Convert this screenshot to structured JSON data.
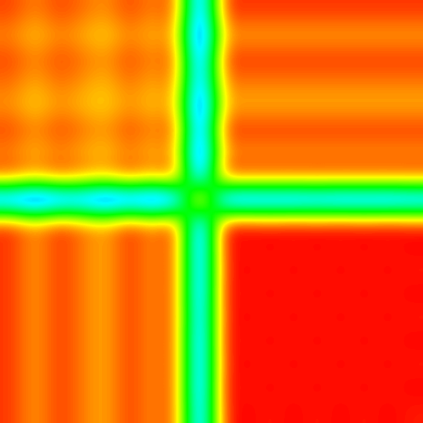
{
  "chart_data": {
    "type": "heatmap",
    "tick_labels": false,
    "grid": false,
    "color_range": [
      0,
      1
    ],
    "cells": [
      [
        0.08,
        0.13,
        0.08,
        0.11,
        0.14,
        0.08,
        0.13,
        0.08,
        0.8,
        0.07,
        0.07,
        0.07,
        0.07,
        0.07,
        0.07,
        0.07,
        0.07,
        0.07
      ],
      [
        0.13,
        0.18,
        0.13,
        0.16,
        0.19,
        0.13,
        0.17,
        0.13,
        0.86,
        0.15,
        0.15,
        0.15,
        0.15,
        0.15,
        0.15,
        0.15,
        0.15,
        0.15
      ],
      [
        0.08,
        0.13,
        0.08,
        0.11,
        0.14,
        0.08,
        0.13,
        0.08,
        0.8,
        0.07,
        0.07,
        0.07,
        0.07,
        0.07,
        0.07,
        0.07,
        0.07,
        0.07
      ],
      [
        0.11,
        0.16,
        0.11,
        0.14,
        0.17,
        0.11,
        0.16,
        0.11,
        0.78,
        0.12,
        0.12,
        0.12,
        0.12,
        0.12,
        0.12,
        0.12,
        0.12,
        0.12
      ],
      [
        0.14,
        0.19,
        0.14,
        0.17,
        0.19,
        0.14,
        0.18,
        0.14,
        0.85,
        0.16,
        0.16,
        0.16,
        0.16,
        0.16,
        0.16,
        0.16,
        0.16,
        0.16
      ],
      [
        0.08,
        0.13,
        0.08,
        0.11,
        0.14,
        0.08,
        0.13,
        0.08,
        0.8,
        0.07,
        0.07,
        0.07,
        0.07,
        0.07,
        0.07,
        0.07,
        0.07,
        0.07
      ],
      [
        0.13,
        0.17,
        0.13,
        0.16,
        0.18,
        0.13,
        0.17,
        0.13,
        0.84,
        0.14,
        0.14,
        0.14,
        0.14,
        0.14,
        0.14,
        0.14,
        0.14,
        0.14
      ],
      [
        0.08,
        0.13,
        0.08,
        0.11,
        0.14,
        0.08,
        0.13,
        0.08,
        0.78,
        0.07,
        0.07,
        0.07,
        0.07,
        0.07,
        0.07,
        0.07,
        0.07,
        0.07
      ],
      [
        0.8,
        0.86,
        0.8,
        0.78,
        0.85,
        0.8,
        0.84,
        0.78,
        0.0,
        0.78,
        0.8,
        0.79,
        0.8,
        0.78,
        0.8,
        0.79,
        0.8,
        0.78
      ],
      [
        0.07,
        0.15,
        0.07,
        0.12,
        0.16,
        0.07,
        0.14,
        0.07,
        0.78,
        0.05,
        0.03,
        0.05,
        0.03,
        0.05,
        0.03,
        0.05,
        0.03,
        0.05
      ],
      [
        0.07,
        0.15,
        0.07,
        0.12,
        0.16,
        0.07,
        0.14,
        0.07,
        0.8,
        0.03,
        0.05,
        0.03,
        0.05,
        0.03,
        0.05,
        0.03,
        0.05,
        0.03
      ],
      [
        0.07,
        0.15,
        0.07,
        0.12,
        0.16,
        0.07,
        0.14,
        0.07,
        0.79,
        0.05,
        0.03,
        0.05,
        0.03,
        0.05,
        0.03,
        0.05,
        0.03,
        0.05
      ],
      [
        0.07,
        0.15,
        0.07,
        0.12,
        0.16,
        0.07,
        0.14,
        0.07,
        0.8,
        0.03,
        0.05,
        0.03,
        0.05,
        0.03,
        0.05,
        0.03,
        0.05,
        0.03
      ],
      [
        0.07,
        0.15,
        0.07,
        0.12,
        0.16,
        0.07,
        0.14,
        0.07,
        0.78,
        0.05,
        0.03,
        0.05,
        0.03,
        0.05,
        0.03,
        0.05,
        0.03,
        0.05
      ],
      [
        0.07,
        0.15,
        0.07,
        0.12,
        0.16,
        0.07,
        0.14,
        0.07,
        0.8,
        0.03,
        0.05,
        0.03,
        0.05,
        0.03,
        0.05,
        0.03,
        0.05,
        0.03
      ],
      [
        0.07,
        0.15,
        0.07,
        0.12,
        0.16,
        0.07,
        0.14,
        0.07,
        0.79,
        0.05,
        0.03,
        0.05,
        0.03,
        0.05,
        0.03,
        0.05,
        0.03,
        0.05
      ],
      [
        0.07,
        0.15,
        0.07,
        0.12,
        0.16,
        0.07,
        0.14,
        0.07,
        0.8,
        0.03,
        0.05,
        0.03,
        0.05,
        0.03,
        0.05,
        0.03,
        0.05,
        0.03
      ],
      [
        0.07,
        0.15,
        0.07,
        0.12,
        0.16,
        0.07,
        0.14,
        0.07,
        0.78,
        0.05,
        0.03,
        0.05,
        0.03,
        0.05,
        0.03,
        0.05,
        0.03,
        0.05
      ]
    ]
  }
}
